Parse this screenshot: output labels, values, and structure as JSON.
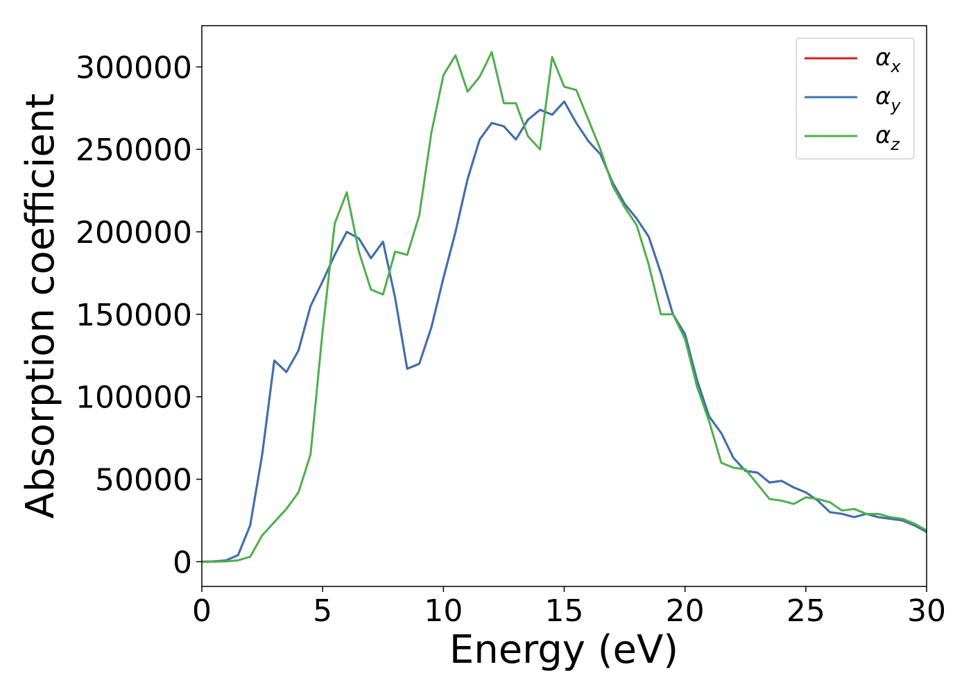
{
  "chart_data": {
    "type": "line",
    "x_label": "Energy (eV)",
    "y_label": "Absorption coefficient",
    "x": [
      0,
      0.5,
      1,
      1.5,
      2,
      2.5,
      3,
      3.5,
      4,
      4.5,
      5,
      5.5,
      6,
      6.5,
      7,
      7.5,
      8,
      8.5,
      9,
      9.5,
      10,
      10.5,
      11,
      11.5,
      12,
      12.5,
      13,
      13.5,
      14,
      14.5,
      15,
      15.5,
      16,
      16.5,
      17,
      17.5,
      18,
      18.5,
      19,
      19.5,
      20,
      20.5,
      21,
      21.5,
      22,
      22.5,
      23,
      23.5,
      24,
      24.5,
      25,
      25.5,
      26,
      26.5,
      27,
      27.5,
      28,
      28.5,
      29,
      29.5,
      30
    ],
    "series": [
      {
        "name": "αx",
        "color": "#e41a1c",
        "values": [
          0,
          200,
          800,
          4000,
          22000,
          65000,
          122000,
          115000,
          128000,
          155000,
          170000,
          186000,
          200000,
          196000,
          184000,
          194000,
          160000,
          117000,
          120000,
          142000,
          172000,
          200000,
          232000,
          256000,
          266000,
          264000,
          256000,
          268000,
          274000,
          271000,
          279000,
          266000,
          255000,
          247000,
          230000,
          217000,
          208000,
          197000,
          175000,
          150000,
          138000,
          110000,
          88000,
          78000,
          63000,
          55000,
          54000,
          48000,
          49000,
          45000,
          42000,
          37000,
          30000,
          29000,
          27000,
          29000,
          27000,
          26000,
          25000,
          22000,
          18000
        ]
      },
      {
        "name": "αy",
        "color": "#3a72b0",
        "values": [
          0,
          200,
          800,
          4000,
          22000,
          65000,
          122000,
          115000,
          128000,
          155000,
          170000,
          186000,
          200000,
          196000,
          184000,
          194000,
          160000,
          117000,
          120000,
          142000,
          172000,
          200000,
          232000,
          256000,
          266000,
          264000,
          256000,
          268000,
          274000,
          271000,
          279000,
          266000,
          255000,
          247000,
          230000,
          217000,
          208000,
          197000,
          175000,
          150000,
          138000,
          110000,
          88000,
          78000,
          63000,
          55000,
          54000,
          48000,
          49000,
          45000,
          42000,
          37000,
          30000,
          29000,
          27000,
          29000,
          27000,
          26000,
          25000,
          22000,
          18000
        ]
      },
      {
        "name": "αz",
        "color": "#4daf4a",
        "values": [
          0,
          0,
          200,
          800,
          3000,
          16000,
          24000,
          32000,
          42000,
          65000,
          140000,
          205000,
          224000,
          188000,
          165000,
          162000,
          188000,
          186000,
          210000,
          260000,
          295000,
          307000,
          285000,
          294000,
          309000,
          278000,
          278000,
          258000,
          250000,
          306000,
          288000,
          286000,
          268000,
          250000,
          228000,
          215000,
          204000,
          180000,
          150000,
          150000,
          135000,
          106000,
          85000,
          60000,
          57000,
          56000,
          47000,
          38000,
          37000,
          35000,
          39000,
          38000,
          36000,
          31000,
          32000,
          29000,
          29000,
          27000,
          26000,
          23000,
          19000
        ]
      }
    ],
    "xlim": [
      0,
      30
    ],
    "xticks": [
      0,
      5,
      10,
      15,
      20,
      25,
      30
    ],
    "ylim": [
      -15000,
      325000
    ],
    "yticks": [
      0,
      50000,
      100000,
      150000,
      200000,
      250000,
      300000
    ],
    "legend": "upper right"
  }
}
